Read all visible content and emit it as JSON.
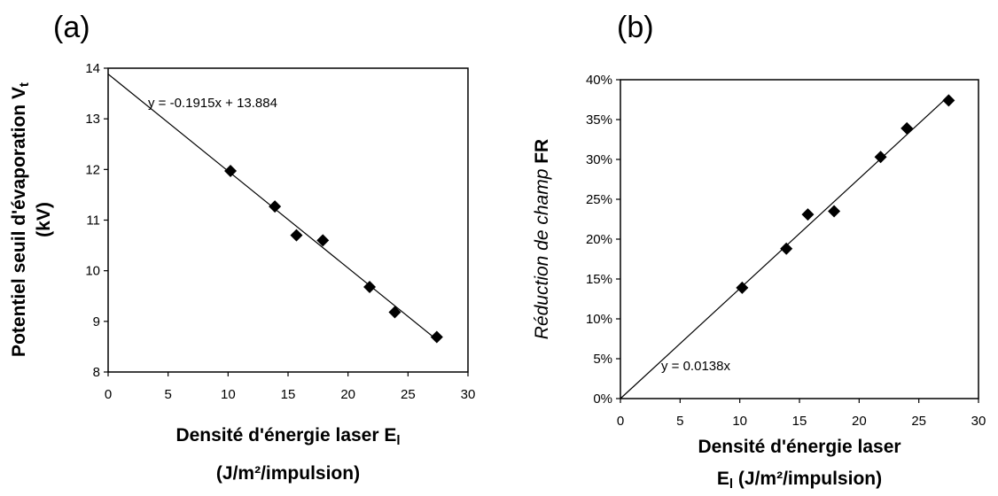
{
  "chart_data": [
    {
      "panel": "(a)",
      "type": "scatter",
      "xlabel_line1": "Densité d'énergie laser E",
      "xlabel_sub": "l",
      "xlabel_line2": "(J/m²/impulsion)",
      "ylabel_line1": "Potentiel seuil d'évaporation V",
      "ylabel_sub": "t",
      "ylabel_line2": "(kV)",
      "xlim": [
        0,
        30
      ],
      "ylim": [
        8,
        14
      ],
      "xticks": [
        "0",
        "5",
        "10",
        "15",
        "20",
        "25",
        "30"
      ],
      "yticks": [
        "8",
        "9",
        "10",
        "11",
        "12",
        "13",
        "14"
      ],
      "points": [
        [
          10.2,
          11.97
        ],
        [
          13.9,
          11.27
        ],
        [
          15.7,
          10.7
        ],
        [
          17.9,
          10.6
        ],
        [
          21.8,
          9.68
        ],
        [
          23.9,
          9.18
        ],
        [
          27.4,
          8.69
        ]
      ],
      "trendline": {
        "slope": -0.1915,
        "intercept": 13.884,
        "x_range": [
          0,
          27.4
        ],
        "equation": "y = -0.1915x + 13.884"
      },
      "grid": false
    },
    {
      "panel": "(b)",
      "type": "scatter",
      "xlabel_line1": "Densité d'énergie laser",
      "xlabel_line2_prefix": "E",
      "xlabel_sub": "l",
      "xlabel_line2": " (J/m²/impulsion)",
      "ylabel_italic": "Réduction de champ",
      "ylabel_bold": " FR",
      "xlim": [
        0,
        30
      ],
      "ylim": [
        0,
        0.4
      ],
      "xticks": [
        "0",
        "5",
        "10",
        "15",
        "20",
        "25",
        "30"
      ],
      "yticks": [
        "0%",
        "5%",
        "10%",
        "15%",
        "20%",
        "25%",
        "30%",
        "35%",
        "40%"
      ],
      "points": [
        [
          10.2,
          0.139
        ],
        [
          13.9,
          0.188
        ],
        [
          15.7,
          0.231
        ],
        [
          17.9,
          0.235
        ],
        [
          21.8,
          0.303
        ],
        [
          24.0,
          0.339
        ],
        [
          27.5,
          0.374
        ]
      ],
      "trendline": {
        "slope": 0.0138,
        "intercept": 0,
        "x_range": [
          0,
          27.5
        ],
        "equation": "y = 0.0138x"
      },
      "grid": false
    }
  ]
}
